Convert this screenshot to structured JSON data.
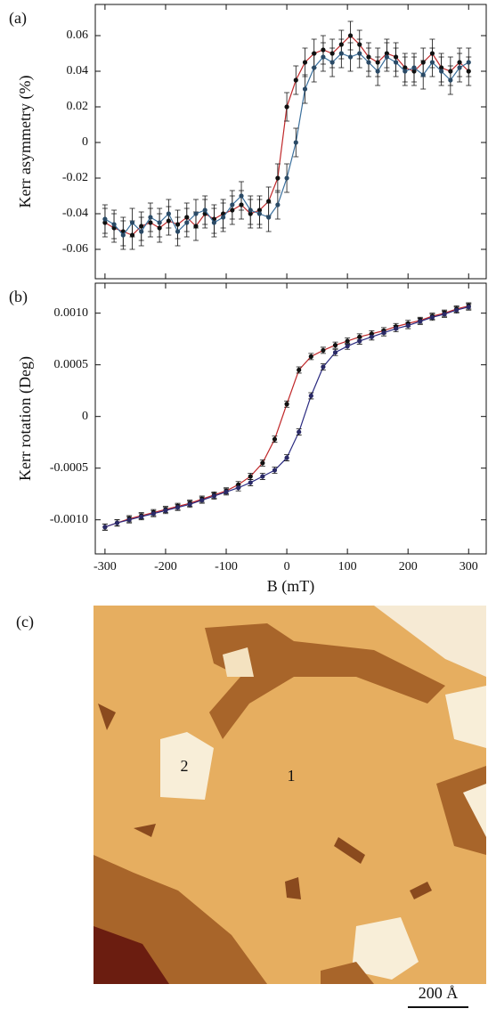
{
  "chart_data": [
    {
      "type": "line",
      "panel_label": "(a)",
      "y_label": "Kerr asymmetry (%)",
      "xlim": [
        -316,
        329
      ],
      "xticks": [
        -300,
        -200,
        -100,
        0,
        100,
        200,
        300
      ],
      "ylim": [
        -0.0765,
        0.0775
      ],
      "yticks": [
        -0.06,
        -0.04,
        -0.02,
        0,
        0.02,
        0.04,
        0.06
      ],
      "x": [
        -300,
        -285,
        -270,
        -255,
        -240,
        -225,
        -210,
        -195,
        -180,
        -165,
        -150,
        -135,
        -120,
        -105,
        -90,
        -75,
        -60,
        -45,
        -30,
        -15,
        0,
        15,
        30,
        45,
        60,
        75,
        90,
        105,
        120,
        135,
        150,
        165,
        180,
        195,
        210,
        225,
        240,
        255,
        270,
        285,
        300
      ],
      "series": [
        {
          "color": "#c0282a",
          "marker_color": "#111111",
          "error": 0.008,
          "values": [
            -0.045,
            -0.048,
            -0.05,
            -0.052,
            -0.047,
            -0.045,
            -0.048,
            -0.044,
            -0.046,
            -0.042,
            -0.047,
            -0.04,
            -0.043,
            -0.04,
            -0.038,
            -0.035,
            -0.04,
            -0.038,
            -0.033,
            -0.02,
            0.02,
            0.035,
            0.045,
            0.05,
            0.052,
            0.05,
            0.055,
            0.06,
            0.055,
            0.048,
            0.045,
            0.05,
            0.048,
            0.042,
            0.04,
            0.045,
            0.05,
            0.042,
            0.04,
            0.045,
            0.04
          ]
        },
        {
          "color": "#3a6f9c",
          "marker_color": "#2a4a66",
          "error": 0.008,
          "values": [
            -0.043,
            -0.046,
            -0.052,
            -0.045,
            -0.05,
            -0.042,
            -0.045,
            -0.04,
            -0.05,
            -0.045,
            -0.04,
            -0.038,
            -0.045,
            -0.042,
            -0.035,
            -0.03,
            -0.038,
            -0.04,
            -0.042,
            -0.035,
            -0.02,
            0.0,
            0.03,
            0.042,
            0.048,
            0.045,
            0.05,
            0.048,
            0.05,
            0.045,
            0.04,
            0.048,
            0.045,
            0.04,
            0.042,
            0.038,
            0.045,
            0.04,
            0.035,
            0.042,
            0.045
          ]
        }
      ]
    },
    {
      "type": "line",
      "panel_label": "(b)",
      "y_label": "Kerr rotation (Deg)",
      "x_label": "B (mT)",
      "xlim": [
        -316,
        329
      ],
      "xticks": [
        -300,
        -200,
        -100,
        0,
        100,
        200,
        300
      ],
      "ylim": [
        -0.00133,
        0.00129
      ],
      "yticks": [
        {
          "value": -0.001,
          "label": "-0.0010"
        },
        -0.0005,
        0,
        0.0005,
        {
          "value": 0.001,
          "label": "0.0010"
        }
      ],
      "x": [
        -300,
        -280,
        -260,
        -240,
        -220,
        -200,
        -180,
        -160,
        -140,
        -120,
        -100,
        -80,
        -60,
        -40,
        -20,
        0,
        20,
        40,
        60,
        80,
        100,
        120,
        140,
        160,
        180,
        200,
        220,
        240,
        260,
        280,
        300
      ],
      "series": [
        {
          "color": "#c0282a",
          "marker_color": "#111111",
          "error": 3e-05,
          "values": [
            -0.00107,
            -0.00103,
            -0.00099,
            -0.00096,
            -0.00093,
            -0.0009,
            -0.00087,
            -0.00084,
            -0.0008,
            -0.00076,
            -0.00072,
            -0.00066,
            -0.00058,
            -0.00045,
            -0.00022,
            0.00012,
            0.00045,
            0.00058,
            0.00064,
            0.00069,
            0.00073,
            0.00077,
            0.0008,
            0.00083,
            0.00087,
            0.0009,
            0.00093,
            0.00097,
            0.001,
            0.00104,
            0.00107
          ]
        },
        {
          "color": "#2a2a80",
          "marker_color": "#2a2a66",
          "error": 3e-05,
          "values": [
            -0.00107,
            -0.00103,
            -0.001,
            -0.00097,
            -0.00094,
            -0.00091,
            -0.00088,
            -0.00085,
            -0.00081,
            -0.00077,
            -0.00073,
            -0.00069,
            -0.00064,
            -0.00058,
            -0.00052,
            -0.0004,
            -0.00015,
            0.0002,
            0.00048,
            0.00062,
            0.00068,
            0.00073,
            0.00077,
            0.00081,
            0.00085,
            0.00088,
            0.00092,
            0.00096,
            0.00099,
            0.00103,
            0.00106
          ]
        }
      ]
    }
  ],
  "image": {
    "panel_label": "(c)",
    "annotations": [
      "1",
      "2"
    ],
    "scale_bar": "200 Å"
  }
}
